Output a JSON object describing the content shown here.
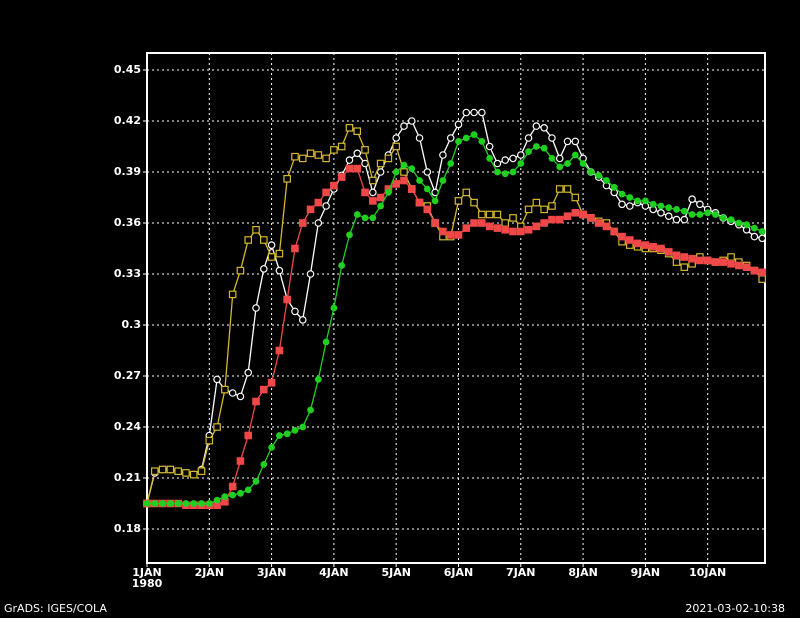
{
  "chart_data": {
    "type": "line",
    "x": [
      1,
      1.125,
      1.25,
      1.375,
      1.5,
      1.625,
      1.75,
      1.875,
      2,
      2.125,
      2.25,
      2.375,
      2.5,
      2.625,
      2.75,
      2.875,
      3,
      3.125,
      3.25,
      3.375,
      3.5,
      3.625,
      3.75,
      3.875,
      4,
      4.125,
      4.25,
      4.375,
      4.5,
      4.625,
      4.75,
      4.875,
      5,
      5.125,
      5.25,
      5.375,
      5.5,
      5.625,
      5.75,
      5.875,
      6,
      6.125,
      6.25,
      6.375,
      6.5,
      6.625,
      6.75,
      6.875,
      7,
      7.125,
      7.25,
      7.375,
      7.5,
      7.625,
      7.75,
      7.875,
      8,
      8.125,
      8.25,
      8.375,
      8.5,
      8.625,
      8.75,
      8.875,
      9,
      9.125,
      9.25,
      9.375,
      9.5,
      9.625,
      9.75,
      9.875,
      10,
      10.125,
      10.25,
      10.375,
      10.5,
      10.625,
      10.75,
      10.875
    ],
    "xlim": [
      1,
      10.92
    ],
    "xticks": [
      {
        "value": 1,
        "label": "1JAN"
      },
      {
        "value": 2,
        "label": "2JAN"
      },
      {
        "value": 3,
        "label": "3JAN"
      },
      {
        "value": 4,
        "label": "4JAN"
      },
      {
        "value": 5,
        "label": "5JAN"
      },
      {
        "value": 6,
        "label": "6JAN"
      },
      {
        "value": 7,
        "label": "7JAN"
      },
      {
        "value": 8,
        "label": "8JAN"
      },
      {
        "value": 9,
        "label": "9JAN"
      },
      {
        "value": 10,
        "label": "10JAN"
      }
    ],
    "year_label": "1980",
    "ylim": [
      0.16,
      0.46
    ],
    "yticks": [
      0.18,
      0.21,
      0.24,
      0.27,
      0.3,
      0.33,
      0.36,
      0.39,
      0.42,
      0.45
    ],
    "grid": true,
    "series": [
      {
        "color": "#ffffff",
        "marker": "open-circle",
        "values": [
          0.195,
          0.213,
          0.215,
          0.215,
          0.214,
          0.213,
          0.212,
          0.215,
          0.235,
          0.268,
          0.262,
          0.26,
          0.258,
          0.272,
          0.31,
          0.333,
          0.347,
          0.332,
          0.315,
          0.308,
          0.303,
          0.33,
          0.36,
          0.37,
          0.38,
          0.388,
          0.397,
          0.401,
          0.395,
          0.378,
          0.39,
          0.4,
          0.41,
          0.417,
          0.42,
          0.41,
          0.39,
          0.378,
          0.4,
          0.41,
          0.418,
          0.425,
          0.425,
          0.425,
          0.405,
          0.395,
          0.397,
          0.398,
          0.4,
          0.41,
          0.417,
          0.416,
          0.41,
          0.398,
          0.408,
          0.408,
          0.398,
          0.39,
          0.387,
          0.382,
          0.378,
          0.371,
          0.37,
          0.372,
          0.37,
          0.368,
          0.366,
          0.364,
          0.362,
          0.362,
          0.374,
          0.371,
          0.368,
          0.366,
          0.363,
          0.361,
          0.359,
          0.356,
          0.352,
          0.351
        ]
      },
      {
        "color": "#d4b830",
        "marker": "open-square",
        "values": [
          0.195,
          0.214,
          0.215,
          0.215,
          0.214,
          0.213,
          0.212,
          0.214,
          0.232,
          0.24,
          0.262,
          0.318,
          0.332,
          0.35,
          0.356,
          0.35,
          0.34,
          0.342,
          0.386,
          0.399,
          0.398,
          0.401,
          0.4,
          0.398,
          0.403,
          0.405,
          0.416,
          0.414,
          0.403,
          0.385,
          0.395,
          0.398,
          0.405,
          0.39,
          0.38,
          0.372,
          0.37,
          0.36,
          0.352,
          0.352,
          0.373,
          0.378,
          0.372,
          0.365,
          0.365,
          0.365,
          0.36,
          0.363,
          0.358,
          0.368,
          0.372,
          0.368,
          0.37,
          0.38,
          0.38,
          0.375,
          0.365,
          0.363,
          0.361,
          0.36,
          0.355,
          0.349,
          0.347,
          0.346,
          0.345,
          0.345,
          0.344,
          0.342,
          0.337,
          0.334,
          0.336,
          0.34,
          0.338,
          0.337,
          0.338,
          0.34,
          0.337,
          0.335,
          0.332,
          0.327
        ]
      },
      {
        "color": "#f04848",
        "marker": "filled-square",
        "values": [
          0.195,
          0.195,
          0.195,
          0.195,
          0.195,
          0.194,
          0.194,
          0.194,
          0.194,
          0.194,
          0.196,
          0.205,
          0.22,
          0.235,
          0.255,
          0.262,
          0.266,
          0.285,
          0.315,
          0.345,
          0.36,
          0.368,
          0.372,
          0.378,
          0.382,
          0.387,
          0.392,
          0.392,
          0.378,
          0.373,
          0.375,
          0.38,
          0.383,
          0.385,
          0.38,
          0.372,
          0.368,
          0.36,
          0.355,
          0.353,
          0.353,
          0.357,
          0.36,
          0.36,
          0.358,
          0.357,
          0.356,
          0.355,
          0.355,
          0.356,
          0.358,
          0.36,
          0.362,
          0.362,
          0.364,
          0.366,
          0.365,
          0.363,
          0.36,
          0.358,
          0.355,
          0.352,
          0.35,
          0.348,
          0.347,
          0.346,
          0.345,
          0.343,
          0.341,
          0.34,
          0.339,
          0.338,
          0.338,
          0.337,
          0.337,
          0.336,
          0.335,
          0.334,
          0.332,
          0.331
        ]
      },
      {
        "color": "#20d020",
        "marker": "filled-circle",
        "values": [
          0.195,
          0.195,
          0.195,
          0.195,
          0.195,
          0.195,
          0.195,
          0.195,
          0.195,
          0.197,
          0.199,
          0.2,
          0.201,
          0.203,
          0.208,
          0.218,
          0.228,
          0.235,
          0.236,
          0.238,
          0.24,
          0.25,
          0.268,
          0.29,
          0.31,
          0.335,
          0.353,
          0.365,
          0.363,
          0.363,
          0.37,
          0.378,
          0.39,
          0.394,
          0.392,
          0.385,
          0.38,
          0.373,
          0.385,
          0.395,
          0.408,
          0.41,
          0.412,
          0.408,
          0.398,
          0.39,
          0.389,
          0.39,
          0.395,
          0.402,
          0.405,
          0.404,
          0.398,
          0.393,
          0.395,
          0.4,
          0.395,
          0.39,
          0.388,
          0.385,
          0.381,
          0.377,
          0.375,
          0.373,
          0.373,
          0.371,
          0.37,
          0.369,
          0.368,
          0.367,
          0.365,
          0.365,
          0.366,
          0.365,
          0.363,
          0.362,
          0.36,
          0.359,
          0.357,
          0.355
        ]
      }
    ]
  },
  "footer": {
    "left": "GrADS: IGES/COLA",
    "right": "2021-03-02-10:38"
  }
}
